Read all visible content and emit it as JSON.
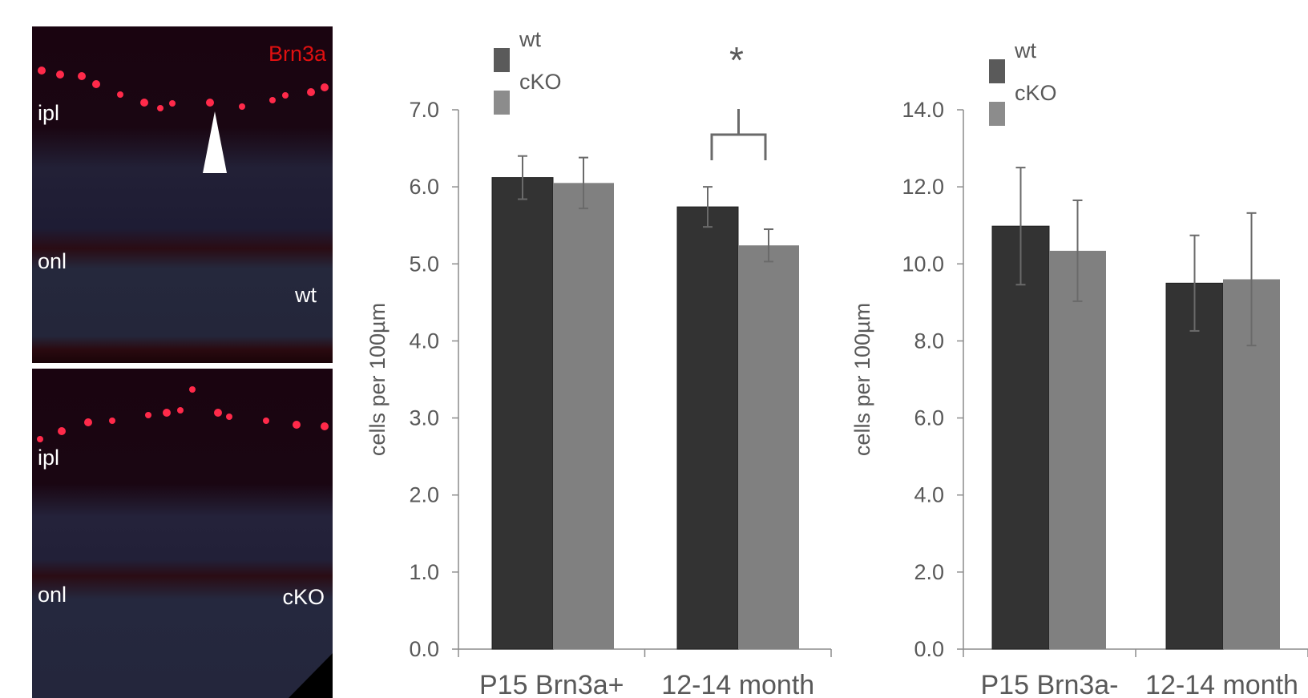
{
  "micrographs": [
    {
      "marker": "Brn3a",
      "layer_top": "ipl",
      "layer_bottom": "onl",
      "genotype": "wt"
    },
    {
      "marker": "",
      "layer_top": "ipl",
      "layer_bottom": "onl",
      "genotype": "cKO"
    }
  ],
  "chart_data": [
    {
      "type": "bar",
      "categories": [
        "P15 Brn3a+",
        "12-14 month"
      ],
      "series": [
        {
          "name": "wt",
          "values": [
            6.12,
            5.74
          ],
          "errors": [
            0.28,
            0.26
          ]
        },
        {
          "name": "cKO",
          "values": [
            6.05,
            5.24
          ],
          "errors": [
            0.33,
            0.21
          ]
        }
      ],
      "ylabel": "cells per 100µm",
      "ylim": [
        0,
        7
      ],
      "yticks": [
        "0.0",
        "1.0",
        "2.0",
        "3.0",
        "4.0",
        "5.0",
        "6.0",
        "7.0"
      ],
      "legend_position": "top-left",
      "significance": {
        "category": "12-14 month",
        "label": "*"
      },
      "colors": {
        "wt": "#333333",
        "cKO": "#808080"
      },
      "grid": false
    },
    {
      "type": "bar",
      "categories": [
        "P15 Brn3a-",
        "12-14 month"
      ],
      "series": [
        {
          "name": "wt",
          "values": [
            10.98,
            9.5
          ],
          "errors": [
            1.52,
            1.24
          ]
        },
        {
          "name": "cKO",
          "values": [
            10.34,
            9.6
          ],
          "errors": [
            1.31,
            1.72
          ]
        }
      ],
      "ylabel": "cells per 100µm",
      "ylim": [
        0,
        14
      ],
      "yticks": [
        "0.0",
        "2.0",
        "4.0",
        "6.0",
        "8.0",
        "10.0",
        "12.0",
        "14.0"
      ],
      "legend_position": "top-left",
      "colors": {
        "wt": "#333333",
        "cKO": "#808080"
      },
      "grid": false
    }
  ]
}
